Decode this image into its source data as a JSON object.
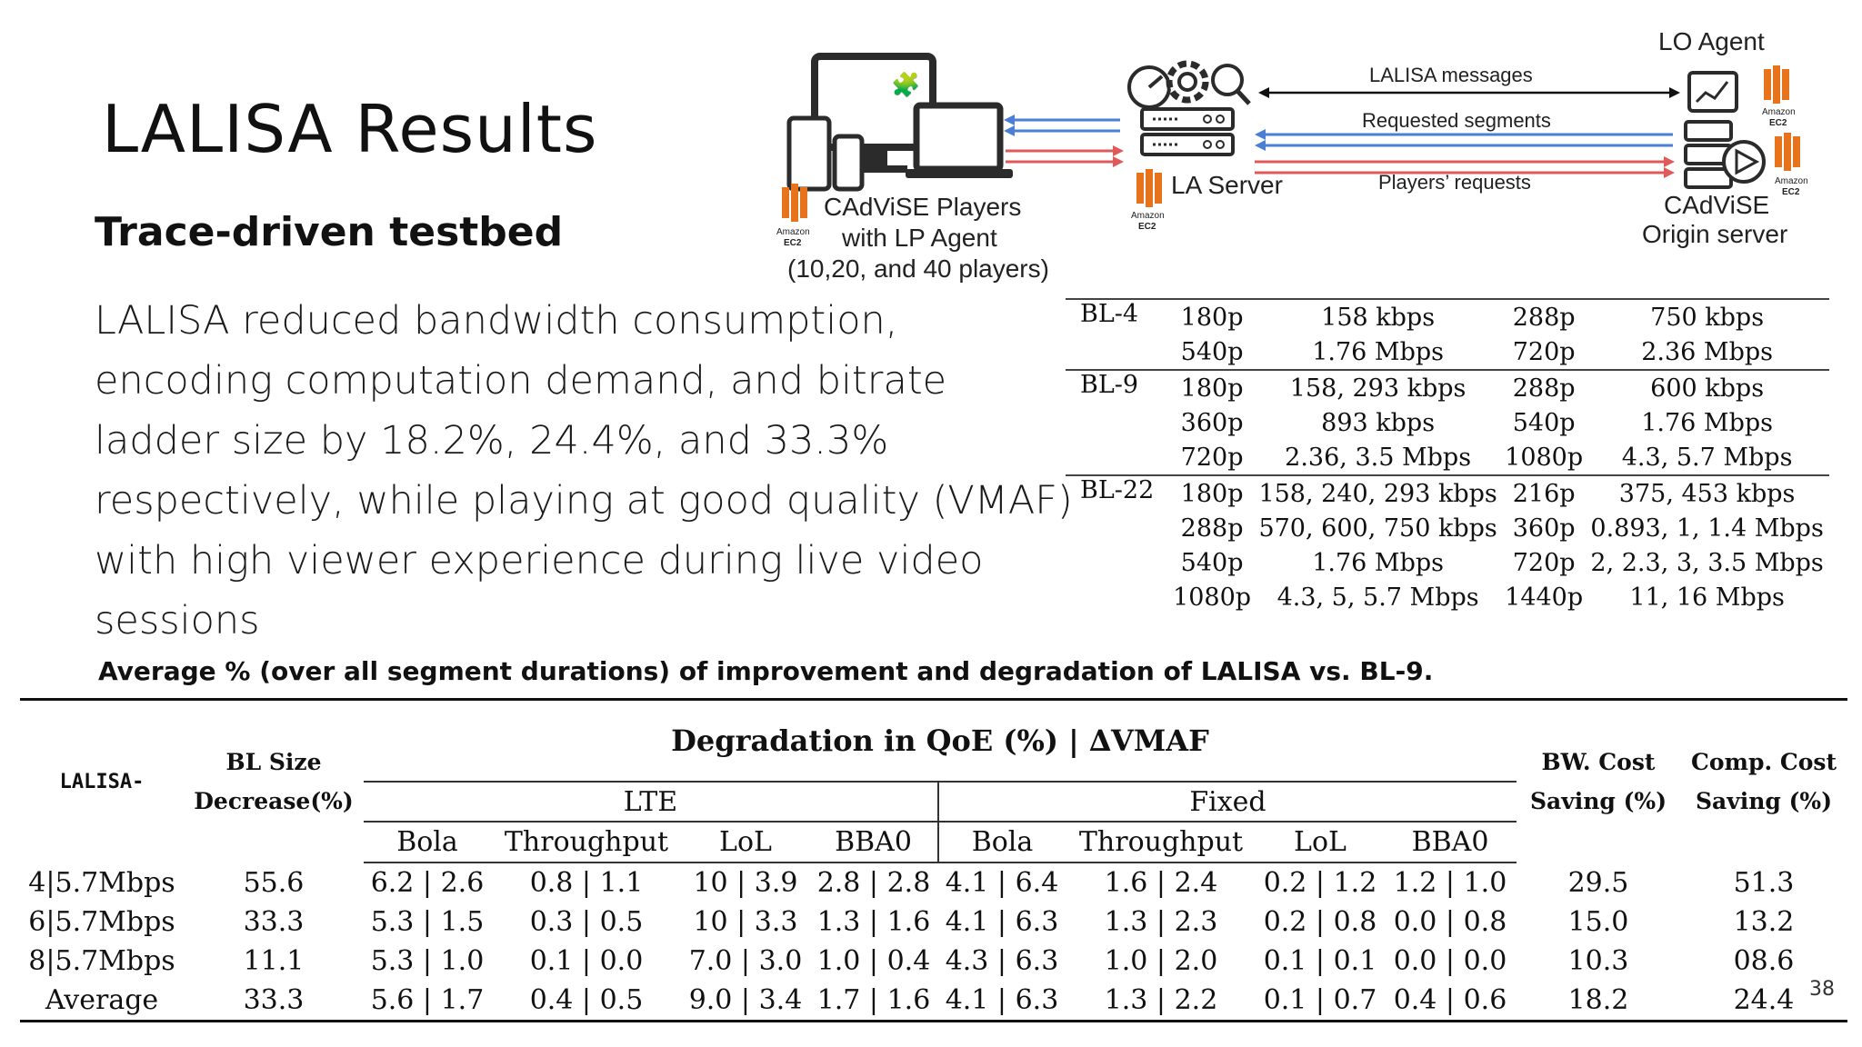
{
  "slide": {
    "title": "LALISA Results",
    "subtitle": "Trace-driven testbed",
    "body": "LALISA reduced bandwidth consumption, encoding computation demand, and bitrate ladder size by 18.2%, 24.4%, and 33.3% respectively, while playing at good quality (VMAF) with high viewer experience during live video sessions",
    "caption": "Average % (over all segment durations) of improvement and degradation of LALISA vs. BL-9.",
    "page_number": "38"
  },
  "diagram": {
    "lo_agent": "LO Agent",
    "lalisa_messages": "LALISA messages",
    "requested_segments": "Requested segments",
    "players_requests": "Players’ requests",
    "la_server": "LA Server",
    "players_line1": "CAdViSE Players",
    "players_line2": "with LP Agent",
    "players_line3": "(10,20, and 40 players)",
    "origin_line1": "CAdViSE",
    "origin_line2": "Origin server",
    "amazon": "Amazon",
    "ec2": "EC2",
    "colors": {
      "aws_orange": "#e8731d",
      "arrow_blue": "#4a7fd4",
      "arrow_red": "#e05a5a",
      "device_dark": "#2b2b2b"
    }
  },
  "ladder": {
    "groups": [
      {
        "name": "BL-4",
        "rows": [
          [
            "180p",
            "158 kbps",
            "288p",
            "750 kbps"
          ],
          [
            "540p",
            "1.76 Mbps",
            "720p",
            "2.36 Mbps"
          ]
        ]
      },
      {
        "name": "BL-9",
        "rows": [
          [
            "180p",
            "158, 293 kbps",
            "288p",
            "600 kbps"
          ],
          [
            "360p",
            "893 kbps",
            "540p",
            "1.76 Mbps"
          ],
          [
            "720p",
            "2.36, 3.5 Mbps",
            "1080p",
            "4.3, 5.7 Mbps"
          ]
        ]
      },
      {
        "name": "BL-22",
        "rows": [
          [
            "180p",
            "158, 240, 293 kbps",
            "216p",
            "375, 453 kbps"
          ],
          [
            "288p",
            "570, 600, 750 kbps",
            "360p",
            "0.893, 1, 1.4 Mbps"
          ],
          [
            "540p",
            "1.76 Mbps",
            "720p",
            "2, 2.3, 3, 3.5 Mbps"
          ],
          [
            "1080p",
            "4.3, 5, 5.7 Mbps",
            "1440p",
            "11, 16 Mbps"
          ]
        ]
      }
    ]
  },
  "results": {
    "row_header": "LALISA-",
    "bl_size_line1": "BL Size",
    "bl_size_line2": "Decrease(%)",
    "degradation_header": "Degradation in QoE (%) | ∆VMAF",
    "lte": "LTE",
    "fixed": "Fixed",
    "sub_columns": [
      "Bola",
      "Throughput",
      "LoL",
      "BBA0",
      "Bola",
      "Throughput",
      "LoL",
      "BBA0"
    ],
    "bw_line1": "BW. Cost",
    "bw_line2": "Saving (%)",
    "comp_line1": "Comp. Cost",
    "comp_line2": "Saving (%)",
    "rows": [
      [
        "4|5.7Mbps",
        "55.6",
        "6.2 | 2.6",
        "0.8 | 1.1",
        "10 | 3.9",
        "2.8 | 2.8",
        "4.1 | 6.4",
        "1.6 | 2.4",
        "0.2 | 1.2",
        "1.2 | 1.0",
        "29.5",
        "51.3"
      ],
      [
        "6|5.7Mbps",
        "33.3",
        "5.3 | 1.5",
        "0.3 | 0.5",
        "10 | 3.3",
        "1.3 | 1.6",
        "4.1 | 6.3",
        "1.3 | 2.3",
        "0.2 | 0.8",
        "0.0 | 0.8",
        "15.0",
        "13.2"
      ],
      [
        "8|5.7Mbps",
        "11.1",
        "5.3 | 1.0",
        "0.1 | 0.0",
        "7.0 | 3.0",
        "1.0 | 0.4",
        "4.3 | 6.3",
        "1.0 | 2.0",
        "0.1 | 0.1",
        "0.0 | 0.0",
        "10.3",
        "08.6"
      ],
      [
        "Average",
        "33.3",
        "5.6 | 1.7",
        "0.4 | 0.5",
        "9.0 | 3.4",
        "1.7 | 1.6",
        "4.1 | 6.3",
        "1.3 | 2.2",
        "0.1 | 0.7",
        "0.4 | 0.6",
        "18.2",
        "24.4"
      ]
    ]
  }
}
